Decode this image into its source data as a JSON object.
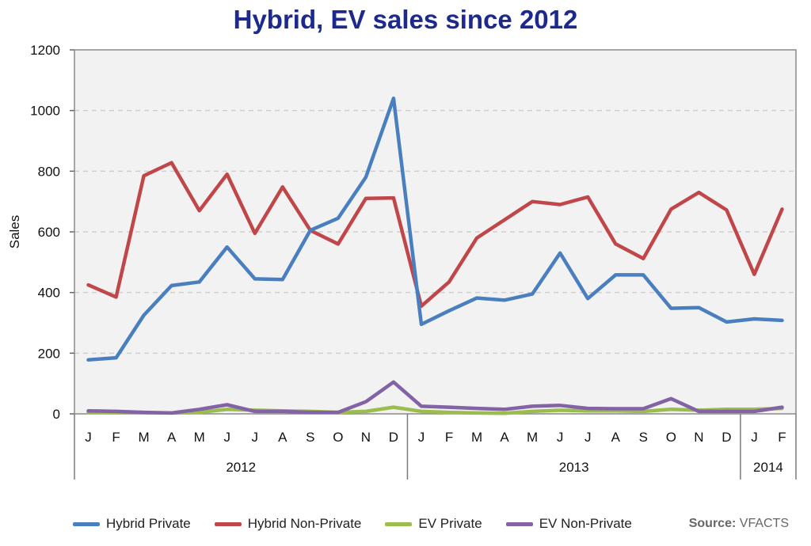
{
  "chart_data": {
    "type": "line",
    "title": "Hybrid, EV sales since 2012",
    "ylabel": "Sales",
    "xlabel": "",
    "ylim": [
      0,
      1200
    ],
    "yticks": [
      0,
      200,
      400,
      600,
      800,
      1000,
      1200
    ],
    "grid": true,
    "legend_position": "bottom",
    "categories": [
      "J",
      "F",
      "M",
      "A",
      "M",
      "J",
      "J",
      "A",
      "S",
      "O",
      "N",
      "D",
      "J",
      "F",
      "M",
      "A",
      "M",
      "J",
      "J",
      "A",
      "S",
      "O",
      "N",
      "D",
      "J",
      "F"
    ],
    "year_groups": [
      {
        "label": "2012",
        "count": 12
      },
      {
        "label": "2013",
        "count": 12
      },
      {
        "label": "2014",
        "count": 2
      }
    ],
    "series": [
      {
        "name": "Hybrid Private",
        "color": "#4a7fbf",
        "values": [
          178,
          185,
          325,
          423,
          435,
          550,
          445,
          443,
          605,
          645,
          780,
          1040,
          295,
          340,
          382,
          375,
          395,
          530,
          380,
          458,
          458,
          348,
          350,
          303,
          313,
          308
        ]
      },
      {
        "name": "Hybrid Non-Private",
        "color": "#c1464a",
        "values": [
          425,
          385,
          785,
          828,
          670,
          790,
          595,
          748,
          605,
          560,
          710,
          712,
          355,
          435,
          580,
          640,
          700,
          690,
          715,
          560,
          512,
          675,
          730,
          672,
          460,
          675
        ]
      },
      {
        "name": "EV Private",
        "color": "#9bbd4d",
        "values": [
          5,
          4,
          4,
          3,
          5,
          15,
          12,
          10,
          8,
          5,
          8,
          22,
          8,
          5,
          3,
          2,
          8,
          12,
          10,
          10,
          8,
          15,
          12,
          15,
          15,
          18
        ]
      },
      {
        "name": "EV Non-Private",
        "color": "#8462a6",
        "values": [
          10,
          8,
          5,
          3,
          15,
          30,
          8,
          8,
          5,
          5,
          40,
          105,
          25,
          22,
          18,
          15,
          25,
          28,
          18,
          17,
          17,
          50,
          8,
          8,
          8,
          22
        ]
      }
    ]
  },
  "source": {
    "label": "Source:",
    "value": "VFACTS"
  }
}
